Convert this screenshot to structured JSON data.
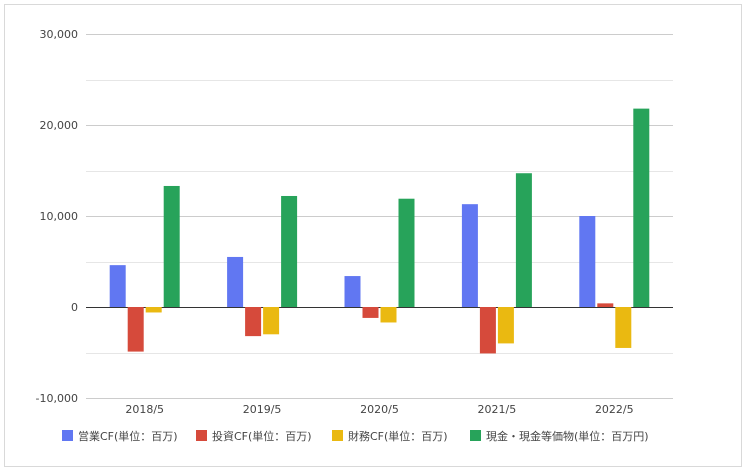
{
  "chart_data": {
    "type": "bar",
    "categories": [
      "2018/5",
      "2019/5",
      "2020/5",
      "2021/5",
      "2022/5"
    ],
    "series": [
      {
        "name": "営業CF(単位：百万)",
        "color": "#6177f2",
        "values": [
          4600,
          5500,
          3400,
          11300,
          10000
        ]
      },
      {
        "name": "投資CF(単位：百万)",
        "color": "#d64a3b",
        "values": [
          -4900,
          -3200,
          -1200,
          -5100,
          400
        ]
      },
      {
        "name": "財務CF(単位：百万)",
        "color": "#eab911",
        "values": [
          -600,
          -3000,
          -1700,
          -4000,
          -4500
        ]
      },
      {
        "name": "現金・現金等価物(単位：百万円)",
        "color": "#27a35a",
        "values": [
          13300,
          12200,
          11900,
          14700,
          21800
        ]
      }
    ],
    "ylim": [
      -10000,
      30000
    ],
    "yticks": [
      "-10,000",
      "0",
      "10,000",
      "20,000",
      "30,000"
    ],
    "ytick_values": [
      -10000,
      0,
      10000,
      20000,
      30000
    ],
    "grid": true,
    "legend": "bottom",
    "title": "",
    "xlabel": "",
    "ylabel": ""
  }
}
